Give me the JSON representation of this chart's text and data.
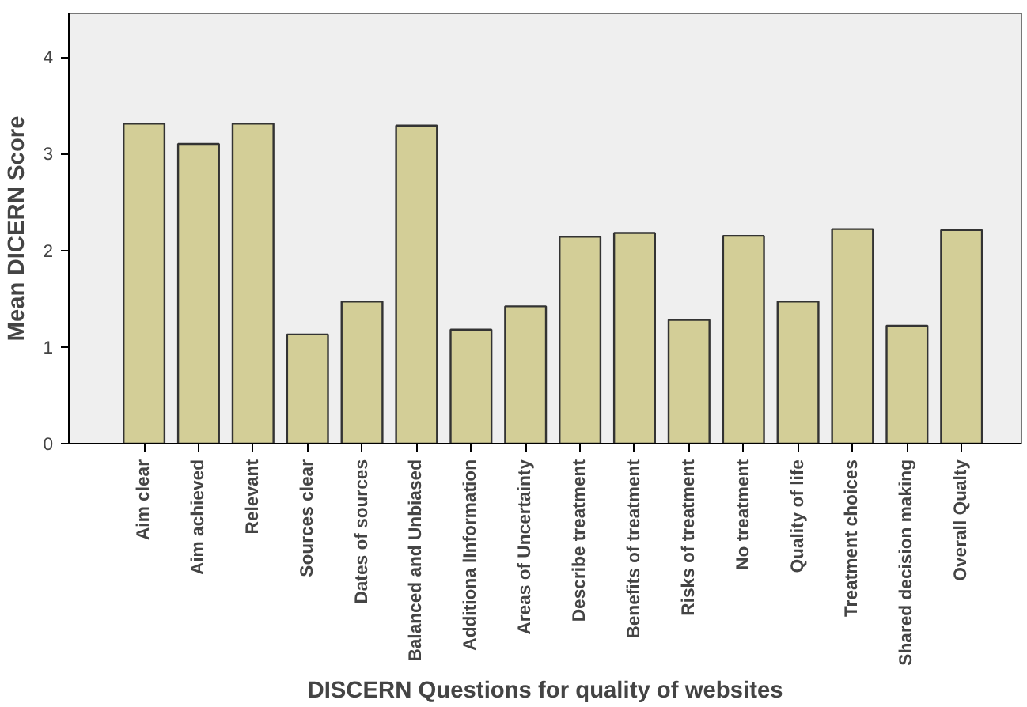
{
  "chart_data": {
    "type": "bar",
    "xlabel": "DISCERN Questions for quality of websites",
    "ylabel": "Mean DICERN Score",
    "categories": [
      "Aim clear",
      "Aim achieved",
      "Relevant",
      "Sources clear",
      "Dates of sources",
      "Balanced and Unbiased",
      "Additiona lInformation",
      "Areas of Uncertainty",
      "Describe treatment",
      "Benefits of treatment",
      "Risks of treatment",
      "No treatment",
      "Quality of life",
      "Treatment choices",
      "Shared decision making",
      "Overall Qualty"
    ],
    "values": [
      3.31,
      3.1,
      3.31,
      1.13,
      1.47,
      3.29,
      1.18,
      1.42,
      2.14,
      2.18,
      1.28,
      2.15,
      1.47,
      2.22,
      1.22,
      2.21
    ],
    "color": "#d3ce97",
    "ylim": [
      0,
      4.45
    ],
    "yticks": [
      0,
      1,
      2,
      3,
      4
    ],
    "grid": false
  }
}
